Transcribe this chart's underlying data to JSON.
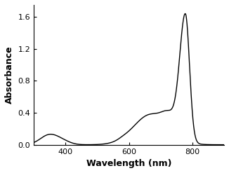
{
  "title": "",
  "xlabel": "Wavelength (nm)",
  "ylabel": "Absorbance",
  "xlim": [
    300,
    900
  ],
  "ylim": [
    0.0,
    1.75
  ],
  "yticks": [
    0.0,
    0.4,
    0.8,
    1.2,
    1.6
  ],
  "xticks": [
    400,
    600,
    800
  ],
  "line_color": "#000000",
  "line_width": 1.0,
  "background_color": "#ffffff"
}
